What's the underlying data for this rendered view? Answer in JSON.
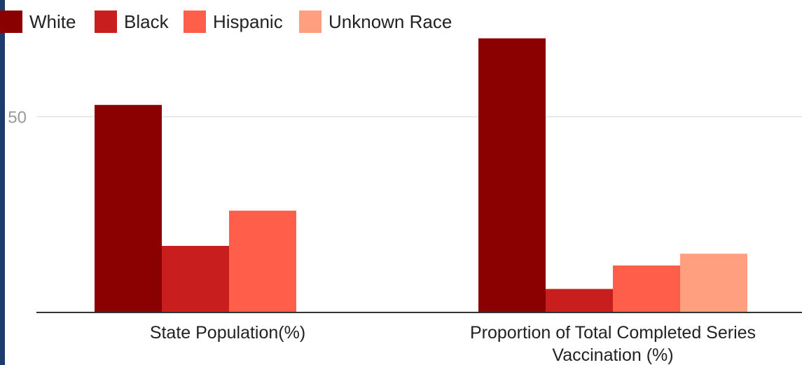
{
  "chart_data": {
    "type": "bar",
    "categories": [
      [
        "State Population(%)"
      ],
      [
        "Proportion of Total Completed Series",
        "Vaccination (%)"
      ]
    ],
    "series": [
      {
        "name": "White",
        "color": "#8b0000",
        "values": [
          53,
          70
        ]
      },
      {
        "name": "Black",
        "color": "#c81e1e",
        "values": [
          17,
          6
        ]
      },
      {
        "name": "Hispanic",
        "color": "#ff5f4a",
        "values": [
          26,
          12
        ]
      },
      {
        "name": "Unknown Race",
        "color": "#ff9f80",
        "values": [
          null,
          15
        ]
      }
    ],
    "yticks": [
      {
        "value": 50,
        "label": "50"
      }
    ],
    "ylim": [
      0,
      78
    ],
    "grid": true,
    "legend_position": "top-left"
  }
}
